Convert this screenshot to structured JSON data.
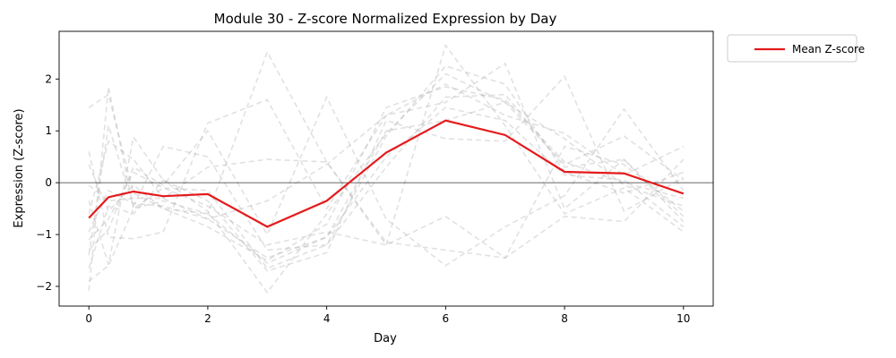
{
  "chart_data": {
    "type": "line",
    "title": "Module 30 - Z-score Normalized Expression by Day",
    "xlabel": "Day",
    "ylabel": "Expression (Z-score)",
    "xlim": [
      -0.5,
      10.5
    ],
    "ylim": [
      -2.38,
      2.92
    ],
    "x_ticks": [
      0,
      2,
      4,
      6,
      8,
      10
    ],
    "y_ticks": [
      -2,
      -1,
      0,
      1,
      2
    ],
    "x": [
      0,
      0.33,
      0.75,
      1.25,
      2,
      3,
      4,
      5,
      6,
      7,
      8,
      9,
      10
    ],
    "reference_line": {
      "y": 0,
      "color": "#333333"
    },
    "legend": {
      "location": "outside-top-right",
      "entries": [
        "Mean Z-score"
      ]
    },
    "series": [
      {
        "name": "Mean Z-score",
        "color": "#e41a1c",
        "style": "solid",
        "values": [
          -0.68,
          -0.28,
          -0.17,
          -0.26,
          -0.22,
          -0.85,
          -0.35,
          0.58,
          1.2,
          0.92,
          0.21,
          0.18,
          -0.21
        ]
      }
    ],
    "background_series": {
      "color": "#aaaaaa",
      "style": "dashed",
      "values": [
        [
          -2.08,
          1.85,
          -0.5,
          -0.35,
          -0.6,
          2.52,
          0.4,
          -1.2,
          2.65,
          1.1,
          -0.6,
          -0.1,
          -0.95
        ],
        [
          1.45,
          1.7,
          -0.2,
          -0.5,
          -0.85,
          -1.5,
          -0.8,
          1.45,
          1.85,
          1.6,
          0.4,
          0.0,
          -0.3
        ],
        [
          -1.4,
          1.1,
          -0.45,
          0.7,
          0.5,
          -1.3,
          -1.2,
          0.9,
          2.25,
          1.9,
          0.2,
          -0.2,
          0.2
        ],
        [
          0.6,
          -1.05,
          -1.08,
          -0.95,
          1.15,
          1.6,
          -0.5,
          1.3,
          1.55,
          2.3,
          -0.5,
          0.45,
          -0.65
        ],
        [
          -1.3,
          -0.9,
          0.3,
          -0.05,
          1.0,
          -1.0,
          1.65,
          -0.7,
          -1.6,
          -0.85,
          -0.25,
          1.42,
          -0.15
        ],
        [
          -0.35,
          -1.58,
          0.88,
          0.05,
          -0.35,
          -1.7,
          -1.35,
          1.2,
          0.85,
          0.8,
          2.05,
          -0.55,
          0.1
        ],
        [
          -1.65,
          -0.45,
          -0.6,
          0.05,
          -0.55,
          -2.12,
          -0.6,
          0.95,
          2.1,
          1.55,
          0.85,
          -0.05,
          -0.45
        ],
        [
          -0.05,
          -0.35,
          -0.3,
          -0.3,
          -0.7,
          -0.35,
          0.35,
          1.3,
          1.9,
          1.3,
          0.95,
          0.15,
          0.7
        ],
        [
          -0.6,
          0.8,
          0.45,
          -0.3,
          0.3,
          0.45,
          0.4,
          -1.15,
          -1.3,
          -1.45,
          0.7,
          0.35,
          -0.55
        ],
        [
          -1.9,
          -1.6,
          -0.5,
          -0.1,
          -0.45,
          -1.2,
          -0.95,
          -1.2,
          -0.65,
          -1.45,
          -0.65,
          -0.75,
          0.45
        ],
        [
          0.35,
          -0.55,
          -0.05,
          -0.5,
          -0.6,
          -1.55,
          -1.05,
          1.0,
          1.2,
          1.55,
          0.35,
          0.9,
          0.05
        ],
        [
          -1.1,
          -0.7,
          0.2,
          -0.1,
          -0.15,
          -1.65,
          -1.2,
          0.3,
          1.65,
          1.7,
          0.3,
          0.45,
          -0.75
        ],
        [
          -0.95,
          -0.15,
          -0.4,
          -0.45,
          -0.7,
          -1.45,
          -1.05,
          0.5,
          1.45,
          1.2,
          0.15,
          0.05,
          -0.85
        ]
      ]
    }
  }
}
